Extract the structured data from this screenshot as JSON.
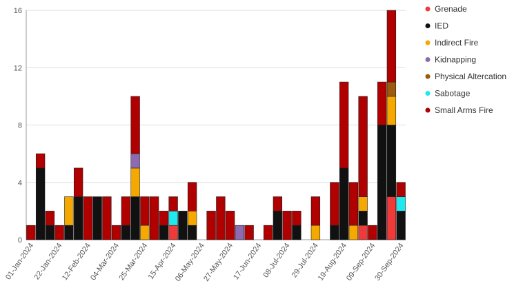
{
  "chart_data": {
    "type": "stacked_bar",
    "categories": [
      "01-Jan-2024",
      null,
      null,
      "22-Jan-2024",
      null,
      null,
      "12-Feb-2024",
      null,
      null,
      "04-Mar-2024",
      null,
      null,
      "25-Mar-2024",
      null,
      null,
      "15-Apr-2024",
      null,
      null,
      "06-May-2024",
      null,
      null,
      "27-May-2024",
      null,
      null,
      "17-Jun-2024",
      null,
      null,
      "08-Jul-2024",
      null,
      null,
      "29-Jul-2024",
      null,
      null,
      "19-Aug-2024",
      null,
      null,
      "09-Sep-2024",
      null,
      null,
      "30-Sep-2024"
    ],
    "series": [
      {
        "name": "Grenade",
        "color": "#f03a3a",
        "values": [
          0,
          0,
          0,
          0,
          0,
          0,
          0,
          0,
          0,
          0,
          0,
          0,
          0,
          0,
          0,
          1,
          0,
          0,
          0,
          0,
          0,
          0,
          0,
          0,
          0,
          0,
          0,
          0,
          0,
          0,
          0,
          0,
          0,
          0,
          0,
          1,
          0,
          0,
          3,
          0
        ]
      },
      {
        "name": "IED",
        "color": "#111111",
        "values": [
          0,
          5,
          1,
          0,
          1,
          3,
          0,
          3,
          0,
          0,
          1,
          3,
          0,
          0,
          1,
          0,
          2,
          1,
          0,
          0,
          0,
          0,
          0,
          0,
          0,
          0,
          2,
          0,
          1,
          0,
          0,
          0,
          1,
          5,
          0,
          1,
          0,
          8,
          5,
          2
        ]
      },
      {
        "name": "Indirect Fire",
        "color": "#f5a800",
        "values": [
          0,
          0,
          0,
          0,
          2,
          0,
          0,
          0,
          0,
          0,
          0,
          2,
          1,
          0,
          0,
          0,
          0,
          1,
          0,
          0,
          0,
          0,
          0,
          0,
          0,
          0,
          0,
          0,
          0,
          0,
          1,
          0,
          0,
          0,
          1,
          1,
          0,
          0,
          2,
          0
        ]
      },
      {
        "name": "Kidnapping",
        "color": "#8e6bb0",
        "values": [
          0,
          0,
          0,
          0,
          0,
          0,
          0,
          0,
          0,
          0,
          0,
          1,
          0,
          0,
          0,
          0,
          0,
          0,
          0,
          0,
          0,
          0,
          1,
          0,
          0,
          0,
          0,
          0,
          0,
          0,
          0,
          0,
          0,
          0,
          0,
          0,
          0,
          0,
          0,
          0
        ]
      },
      {
        "name": "Physical Altercation",
        "color": "#9c5a0c",
        "values": [
          0,
          0,
          0,
          0,
          0,
          0,
          0,
          0,
          0,
          0,
          0,
          0,
          0,
          0,
          0,
          0,
          0,
          0,
          0,
          0,
          0,
          0,
          0,
          0,
          0,
          0,
          0,
          0,
          0,
          0,
          0,
          0,
          0,
          0,
          0,
          0,
          0,
          0,
          1,
          0
        ]
      },
      {
        "name": "Sabotage",
        "color": "#1ee8f0",
        "values": [
          0,
          0,
          0,
          0,
          0,
          0,
          0,
          0,
          0,
          0,
          0,
          0,
          0,
          0,
          0,
          1,
          0,
          0,
          0,
          0,
          0,
          0,
          0,
          0,
          0,
          0,
          0,
          0,
          0,
          0,
          0,
          0,
          0,
          0,
          0,
          0,
          0,
          0,
          0,
          1
        ]
      },
      {
        "name": "Small Arms Fire",
        "color": "#b00000",
        "values": [
          1,
          1,
          1,
          1,
          0,
          2,
          3,
          0,
          3,
          1,
          2,
          4,
          2,
          3,
          1,
          1,
          0,
          2,
          0,
          2,
          3,
          2,
          0,
          1,
          0,
          1,
          1,
          2,
          1,
          0,
          2,
          0,
          3,
          6,
          3,
          7,
          1,
          3,
          5,
          1
        ]
      }
    ],
    "ylim": [
      0,
      16
    ],
    "yticks": [
      0,
      4,
      8,
      12,
      16
    ],
    "grid": true
  }
}
